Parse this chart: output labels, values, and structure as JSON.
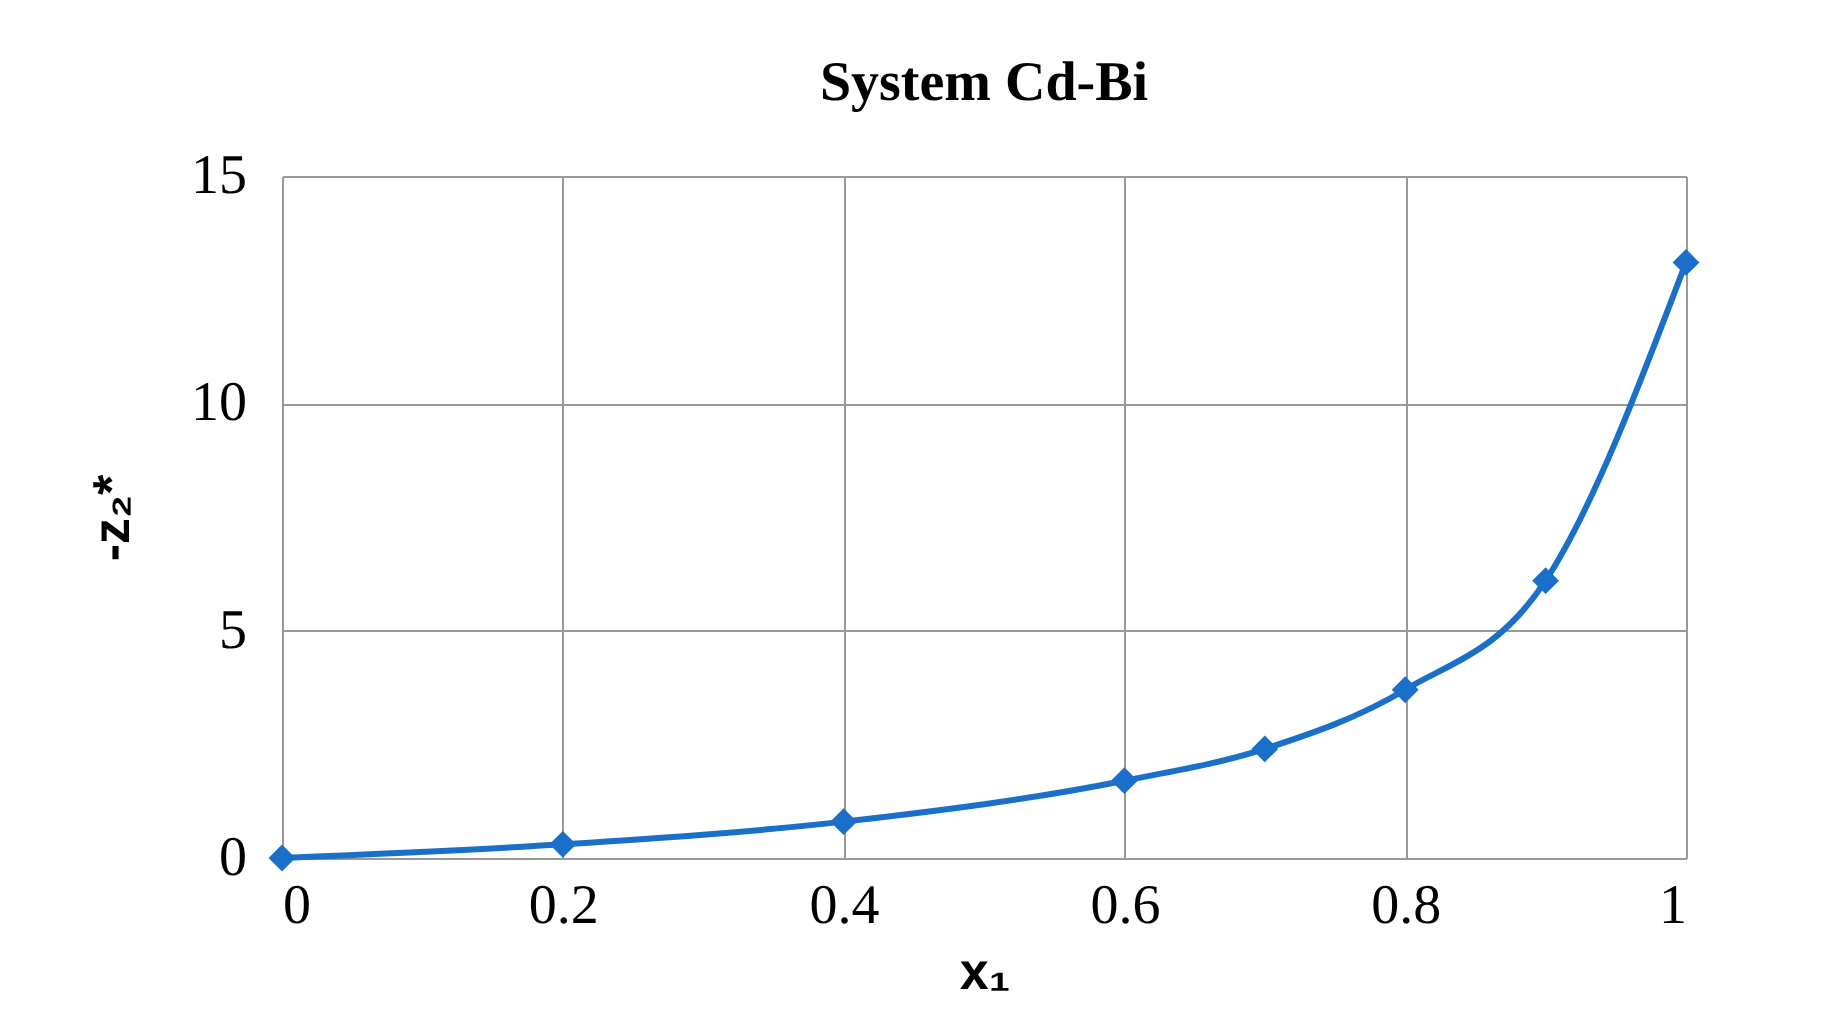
{
  "chart_data": {
    "type": "line",
    "title": "System Cd-Bi",
    "xlabel": "x₁",
    "ylabel": "-z₂*",
    "x": [
      0,
      0.2,
      0.4,
      0.6,
      0.7,
      0.8,
      0.9,
      1
    ],
    "series": [
      {
        "color": "#1a70c8",
        "values": [
          0,
          0.3,
          0.8,
          1.7,
          2.4,
          3.7,
          6.1,
          13.1
        ]
      }
    ],
    "xlim": [
      0,
      1
    ],
    "xticks": [
      0,
      0.2,
      0.4,
      0.6,
      0.8,
      1
    ],
    "ylim": [
      0,
      15
    ],
    "yticks": [
      0,
      5,
      10,
      15
    ],
    "grid": true,
    "marker": "diamond",
    "line_style": "solid"
  }
}
